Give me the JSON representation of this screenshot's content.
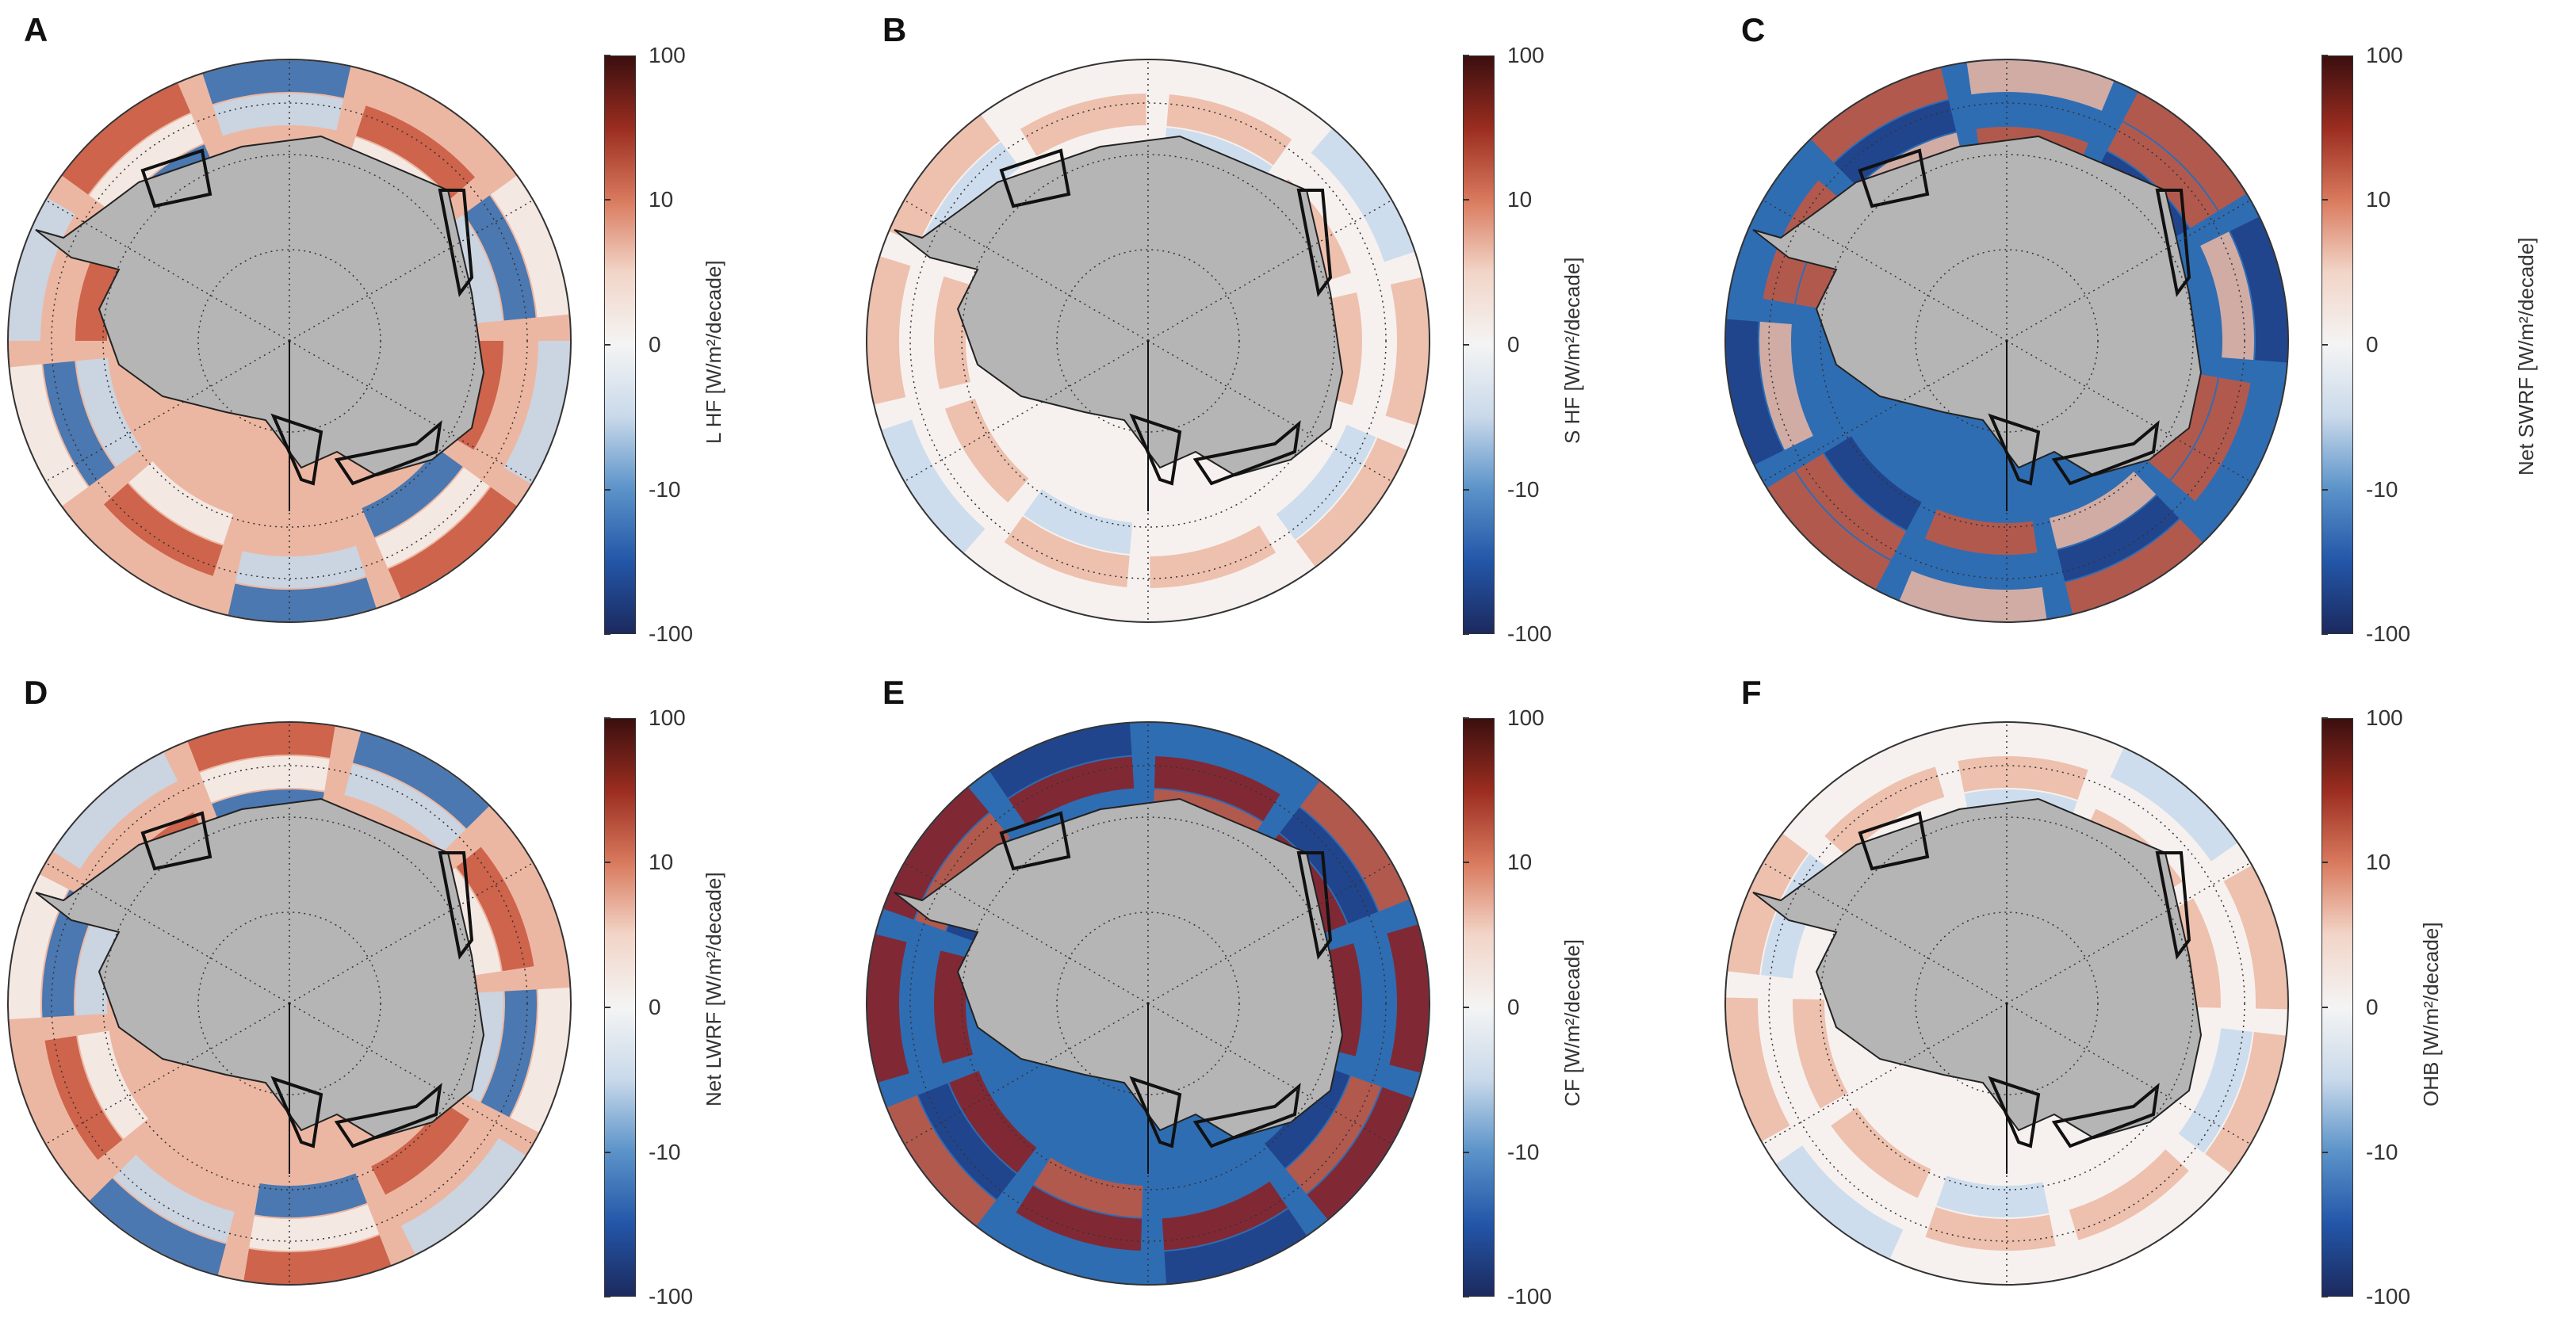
{
  "colorbar": {
    "ticks": [
      "100",
      "10",
      "0",
      "-10",
      "-100"
    ],
    "colors": [
      "#3b0f0f",
      "#9b2d20",
      "#d97a5e",
      "#f2d5c8",
      "#f4f4f4",
      "#c9d9ea",
      "#5b93c9",
      "#2356a8",
      "#1c2a5e"
    ]
  },
  "colors": {
    "land": "#b5b5b5",
    "red": "#c9563c",
    "lightred": "#ecb7a2",
    "white": "#f6f1ef",
    "lightblue": "#c6d9ec",
    "blue": "#2f6db3",
    "darkred": "#8e1d1d",
    "darkblue": "#1d3e86"
  },
  "panels": [
    {
      "letter": "A",
      "cbar_label": "L HF [W/m²/decade]",
      "pattern": "mixed"
    },
    {
      "letter": "B",
      "cbar_label": "S HF [W/m²/decade]",
      "pattern": "weak"
    },
    {
      "letter": "C",
      "cbar_label": "Net SWRF [W/m²/decade]",
      "pattern": "strong"
    },
    {
      "letter": "D",
      "cbar_label": "Net LWRF [W/m²/decade]",
      "pattern": "mixed"
    },
    {
      "letter": "E",
      "cbar_label": "CF [W/m²/decade]",
      "pattern": "extreme"
    },
    {
      "letter": "F",
      "cbar_label": "OHB [W/m²/decade]",
      "pattern": "weak"
    }
  ]
}
